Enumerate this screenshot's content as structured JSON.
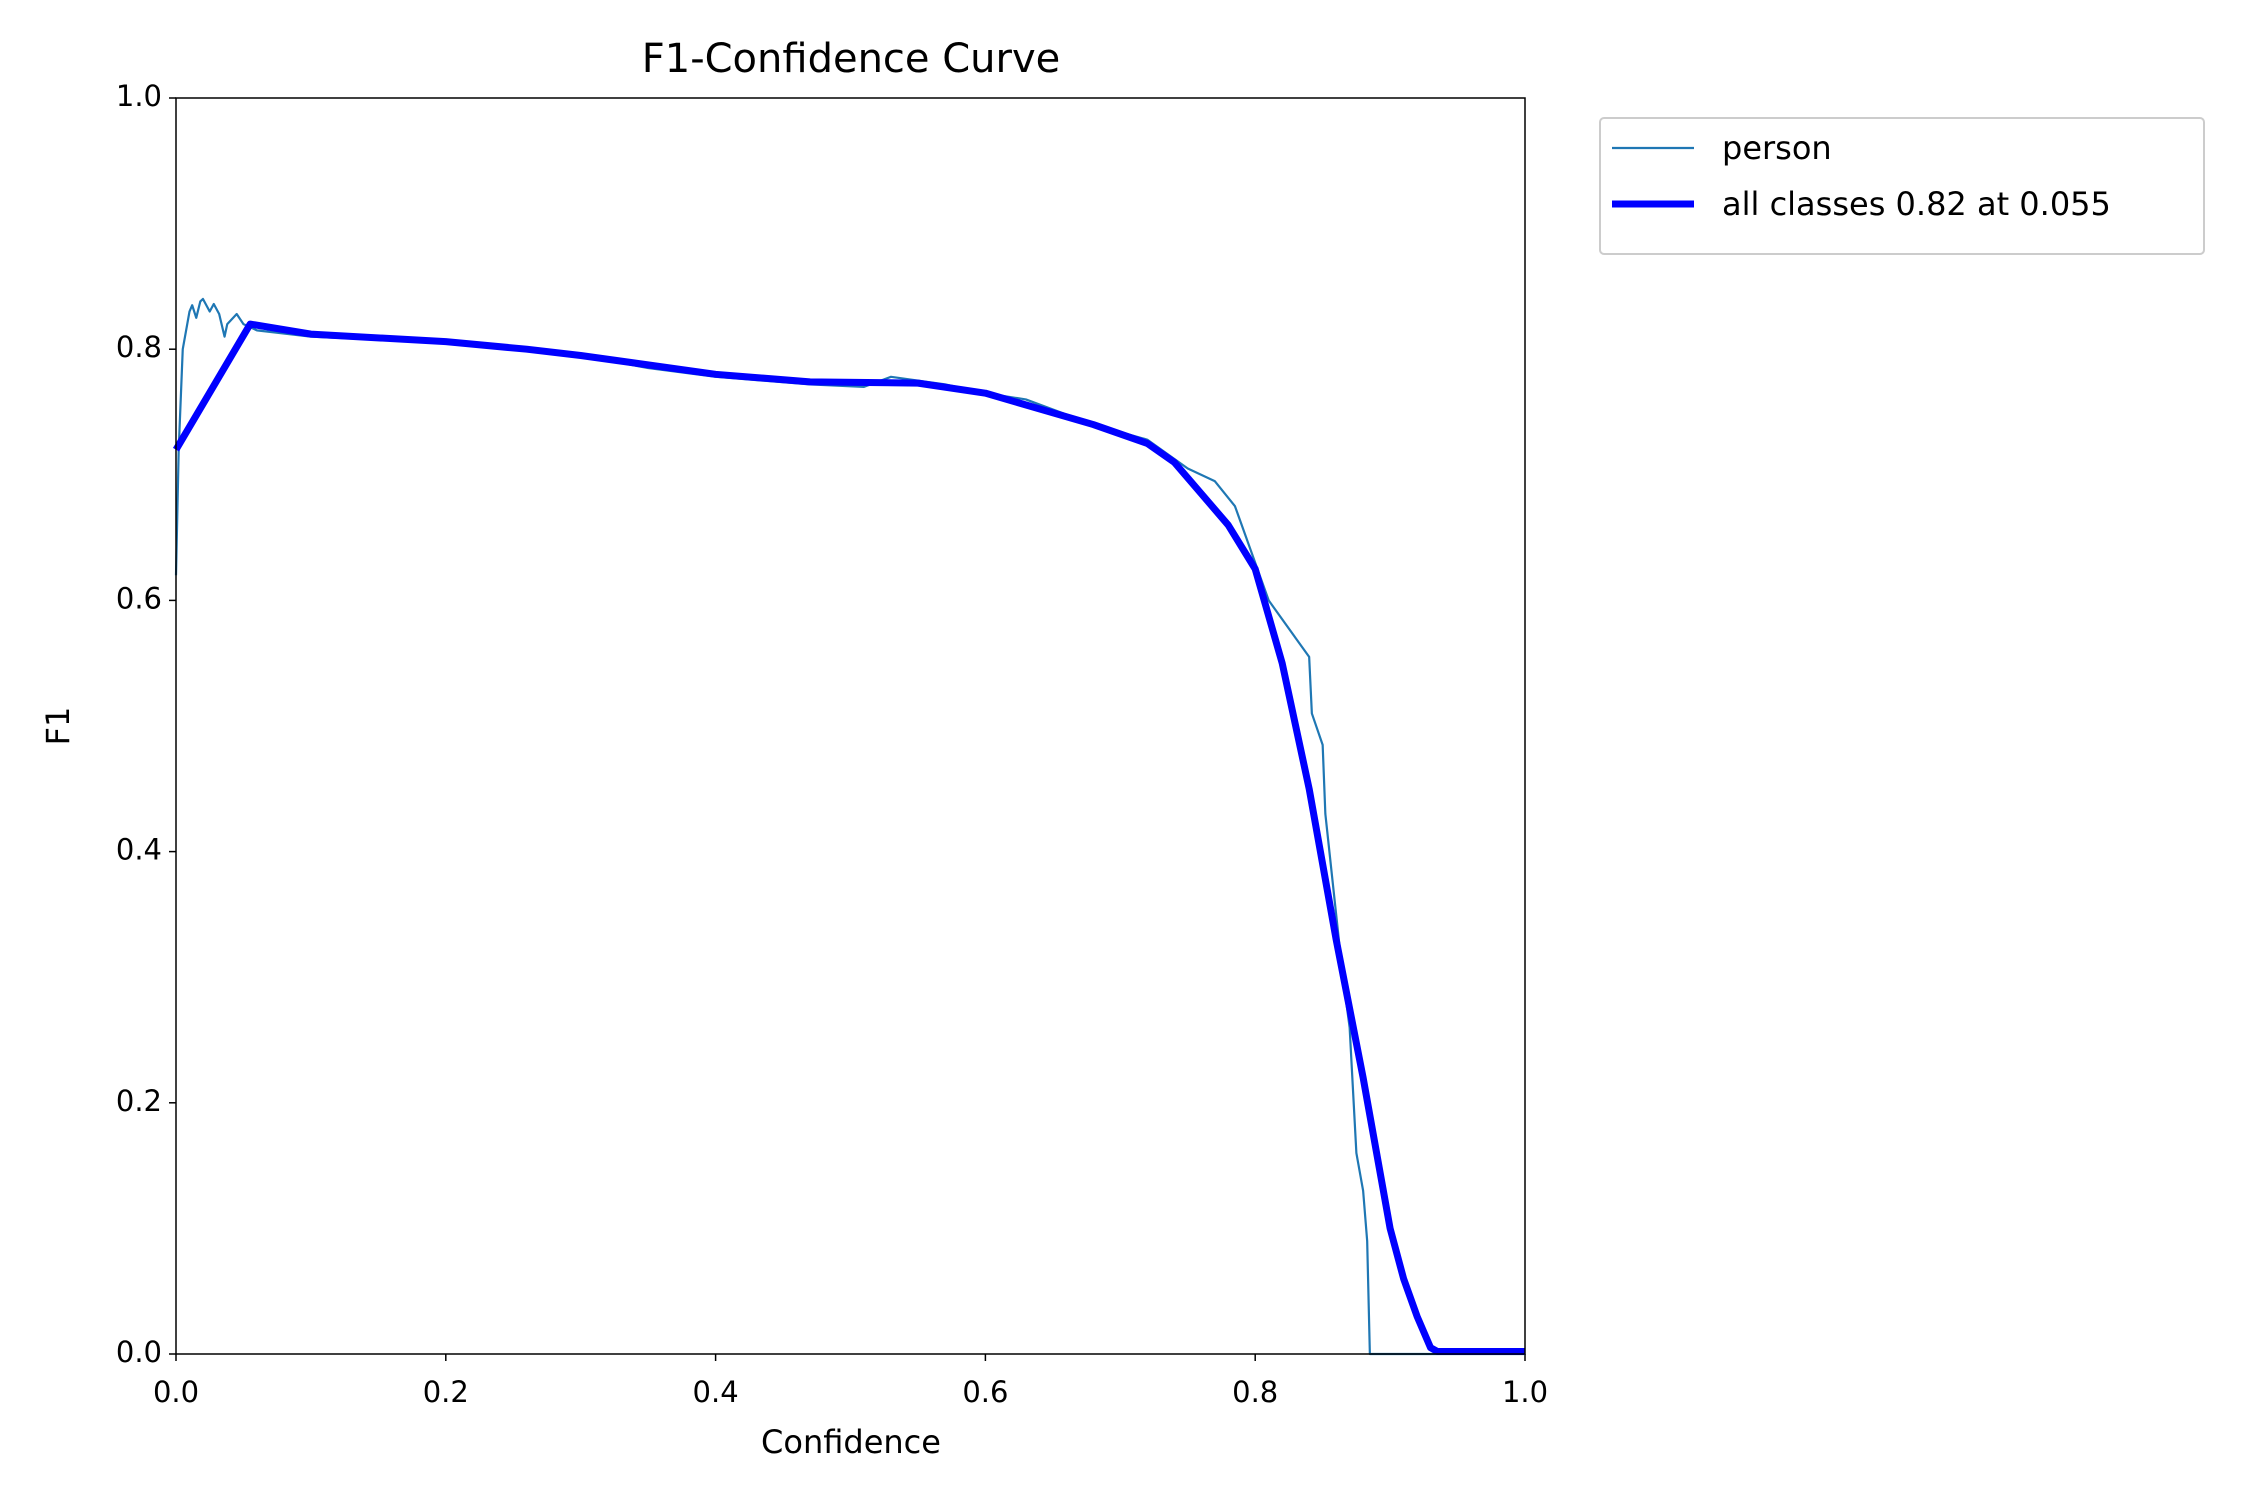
{
  "chart_data": {
    "type": "line",
    "title": "F1-Confidence Curve",
    "x_label": "Confidence",
    "y_label": "F1",
    "xlim": [
      0,
      1
    ],
    "ylim": [
      0,
      1
    ],
    "xticks": [
      {
        "value": 0,
        "label": "0.0"
      },
      0.2,
      0.4,
      0.6,
      0.8,
      {
        "value": 1,
        "label": "1.0"
      }
    ],
    "yticks": [
      {
        "value": 0,
        "label": "0.0"
      },
      0.2,
      0.4,
      0.6,
      0.8,
      {
        "value": 1,
        "label": "1.0"
      }
    ],
    "legend": "outside upper left",
    "series": [
      {
        "name": "person",
        "color": "#1f77b4",
        "x": [
          0,
          0.002,
          0.005,
          0.01,
          0.012,
          0.015,
          0.018,
          0.02,
          0.025,
          0.028,
          0.032,
          0.036,
          0.038,
          0.045,
          0.05,
          0.06,
          0.1,
          0.2,
          0.26,
          0.3,
          0.35,
          0.4,
          0.47,
          0.51,
          0.53,
          0.57,
          0.6,
          0.63,
          0.68,
          0.72,
          0.75,
          0.77,
          0.785,
          0.79,
          0.8,
          0.81,
          0.83,
          0.84,
          0.842,
          0.85,
          0.852,
          0.86,
          0.865,
          0.87,
          0.875,
          0.88,
          0.883,
          0.885,
          1.0
        ],
        "values": [
          0.62,
          0.72,
          0.8,
          0.83,
          0.835,
          0.825,
          0.838,
          0.84,
          0.83,
          0.836,
          0.828,
          0.81,
          0.82,
          0.828,
          0.82,
          0.815,
          0.81,
          0.805,
          0.8,
          0.795,
          0.785,
          0.778,
          0.772,
          0.77,
          0.778,
          0.772,
          0.765,
          0.76,
          0.74,
          0.728,
          0.705,
          0.695,
          0.675,
          0.66,
          0.63,
          0.6,
          0.57,
          0.555,
          0.51,
          0.485,
          0.43,
          0.35,
          0.3,
          0.26,
          0.16,
          0.13,
          0.09,
          0,
          0
        ]
      },
      {
        "name": "all classes 0.82 at 0.055",
        "color": "#0000ff",
        "x": [
          0,
          0.055,
          0.1,
          0.2,
          0.26,
          0.3,
          0.4,
          0.47,
          0.55,
          0.6,
          0.68,
          0.72,
          0.74,
          0.76,
          0.78,
          0.8,
          0.82,
          0.84,
          0.86,
          0.88,
          0.9,
          0.91,
          0.92,
          0.93,
          0.935,
          1.0
        ],
        "values": [
          0.72,
          0.82,
          0.812,
          0.806,
          0.8,
          0.795,
          0.78,
          0.774,
          0.773,
          0.765,
          0.74,
          0.725,
          0.71,
          0.685,
          0.66,
          0.625,
          0.55,
          0.45,
          0.33,
          0.22,
          0.1,
          0.06,
          0.03,
          0.005,
          0.002,
          0.002
        ]
      }
    ]
  }
}
